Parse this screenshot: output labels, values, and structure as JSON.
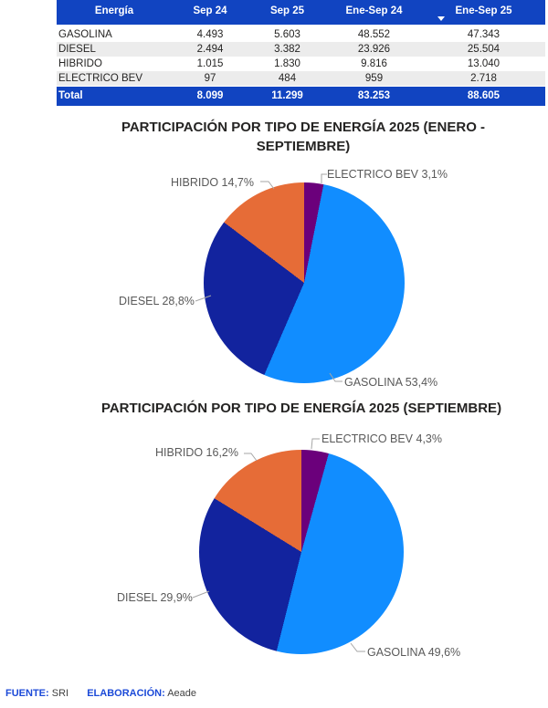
{
  "palette": {
    "table_header_blue": "#1144C1",
    "row_stripe_gray": "#ECECEC",
    "gasolina_blue": "#118DFF",
    "diesel_dark_blue": "#12239E",
    "hibrido_orange": "#E66C37",
    "electrico_purple": "#6B007B",
    "footer_blue": "#1C4AD8",
    "label_gray": "#595959"
  },
  "chart_data": [
    {
      "type": "table",
      "columns": [
        "Energía",
        "Sep 24",
        "Sep 25",
        "Ene-Sep 24",
        "Ene-Sep 25"
      ],
      "sorted_column": "Ene-Sep 24",
      "sort_direction": "descending",
      "rows": [
        [
          "GASOLINA",
          "4.493",
          "5.603",
          "48.552",
          "47.343"
        ],
        [
          "DIESEL",
          "2.494",
          "3.382",
          "23.926",
          "25.504"
        ],
        [
          "HIBRIDO",
          "1.015",
          "1.830",
          "9.816",
          "13.040"
        ],
        [
          "ELECTRICO BEV",
          "97",
          "484",
          "959",
          "2.718"
        ]
      ],
      "total_row": [
        "Total",
        "8.099",
        "11.299",
        "83.253",
        "88.605"
      ]
    },
    {
      "type": "pie",
      "title": "PARTICIPACIÓN POR TIPO DE ENERGÍA 2025 (ENERO - SEPTIEMBRE)",
      "labels": [
        "ELECTRICO BEV",
        "GASOLINA",
        "DIESEL",
        "HIBRIDO"
      ],
      "values": [
        3.1,
        53.4,
        28.8,
        14.7
      ],
      "slice_labels": [
        "ELECTRICO BEV 3,1%",
        "GASOLINA 53,4%",
        "DIESEL 28,8%",
        "HIBRIDO 14,7%"
      ],
      "colors": [
        "#6B007B",
        "#118DFF",
        "#12239E",
        "#E66C37"
      ],
      "start_angle_deg": 0,
      "clockwise": true,
      "legend": "none",
      "data_labels": "category-and-percent"
    },
    {
      "type": "pie",
      "title": "PARTICIPACIÓN POR TIPO DE ENERGÍA 2025 (SEPTIEMBRE)",
      "labels": [
        "ELECTRICO BEV",
        "GASOLINA",
        "DIESEL",
        "HIBRIDO"
      ],
      "values": [
        4.3,
        49.6,
        29.9,
        16.2
      ],
      "slice_labels": [
        "ELECTRICO BEV 4,3%",
        "GASOLINA 49,6%",
        "DIESEL 29,9%",
        "HIBRIDO 16,2%"
      ],
      "colors": [
        "#6B007B",
        "#118DFF",
        "#12239E",
        "#E66C37"
      ],
      "start_angle_deg": 0,
      "clockwise": true,
      "legend": "none",
      "data_labels": "category-and-percent"
    }
  ],
  "footer": {
    "source_label": "FUENTE:",
    "source_value": "SRI",
    "elaboration_label": "ELABORACIÓN:",
    "elaboration_value": "Aeade"
  }
}
